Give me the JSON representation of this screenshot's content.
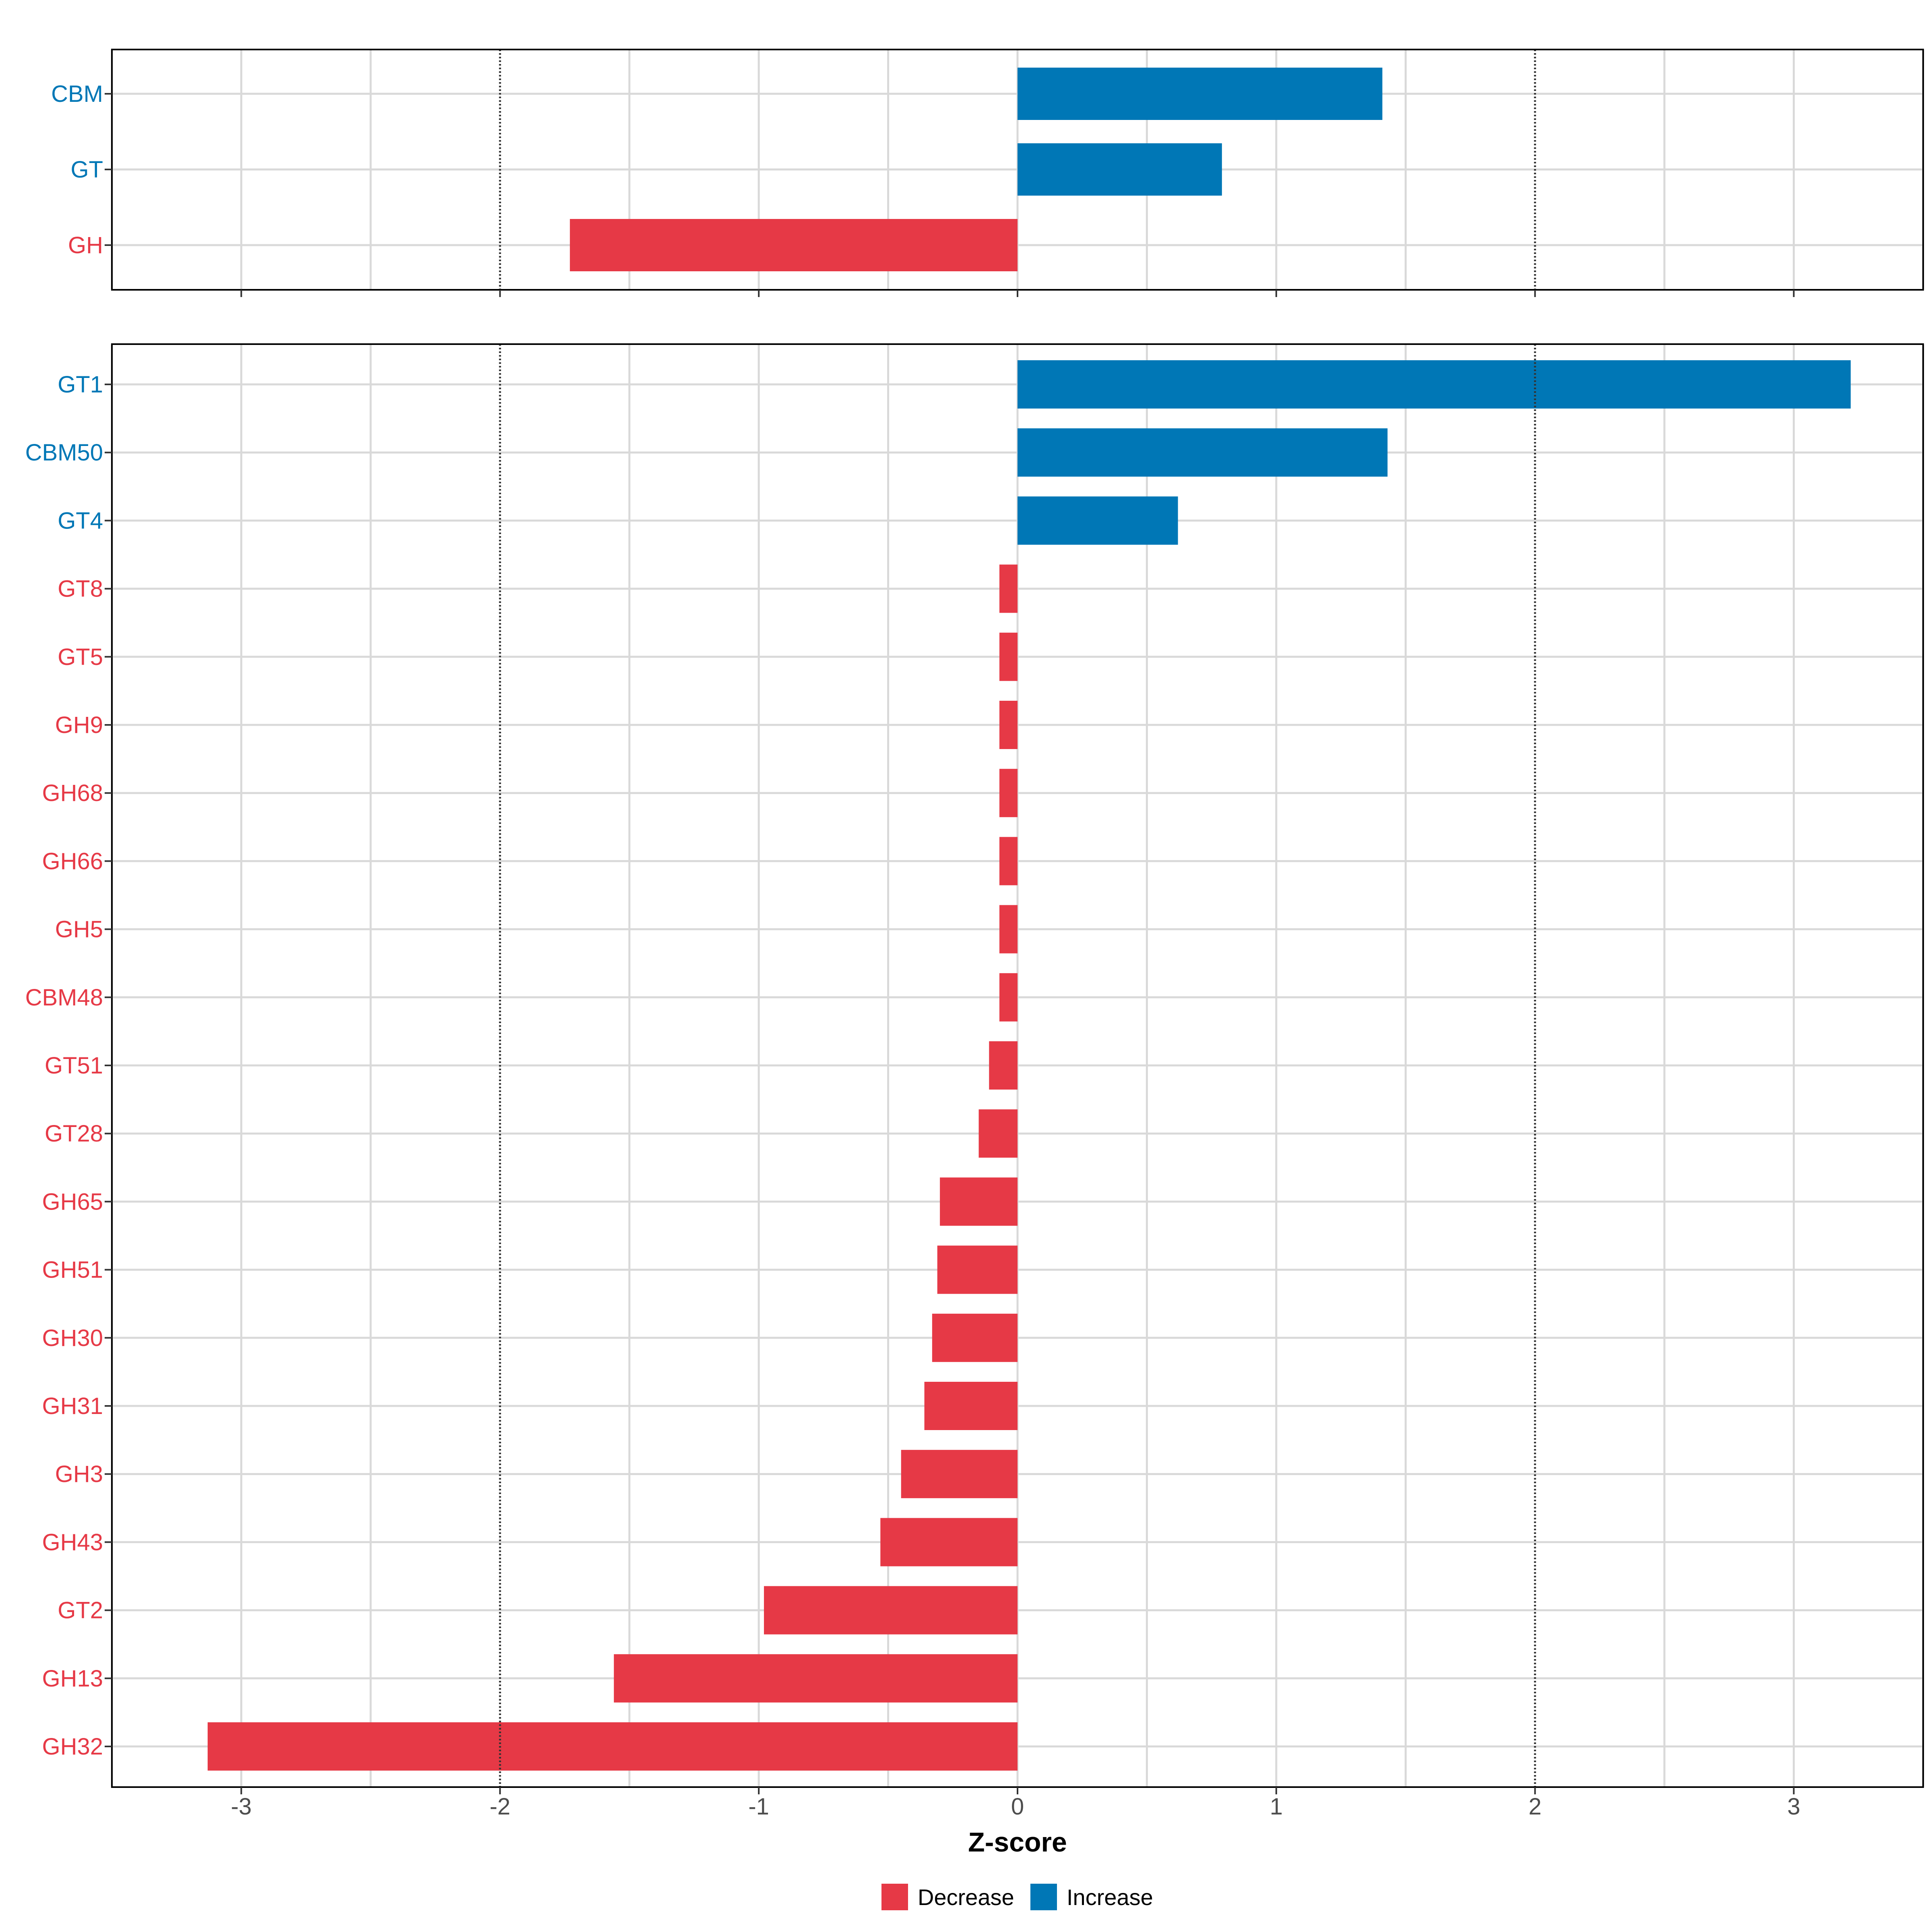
{
  "chart_data": [
    {
      "type": "bar",
      "orientation": "horizontal",
      "categories": [
        "CBM",
        "GT",
        "GH"
      ],
      "values": [
        1.41,
        0.79,
        -1.73
      ],
      "xlim": [
        -3.5,
        3.5
      ],
      "grid": true,
      "reference_lines": [
        -2,
        2
      ]
    },
    {
      "type": "bar",
      "orientation": "horizontal",
      "categories": [
        "GT1",
        "CBM50",
        "GT4",
        "GT8",
        "GT5",
        "GH9",
        "GH68",
        "GH66",
        "GH5",
        "CBM48",
        "GT51",
        "GT28",
        "GH65",
        "GH51",
        "GH30",
        "GH31",
        "GH3",
        "GH43",
        "GT2",
        "GH13",
        "GH32"
      ],
      "values": [
        3.22,
        1.43,
        0.62,
        -0.07,
        -0.07,
        -0.07,
        -0.07,
        -0.07,
        -0.07,
        -0.07,
        -0.11,
        -0.15,
        -0.3,
        -0.31,
        -0.33,
        -0.36,
        -0.45,
        -0.53,
        -0.98,
        -1.56,
        -3.13
      ],
      "xlim": [
        -3.5,
        3.5
      ],
      "xticks": [
        -3,
        -2,
        -1,
        0,
        1,
        2,
        3
      ],
      "xlabel": "Z-score",
      "grid": true,
      "reference_lines": [
        -2,
        2
      ]
    }
  ],
  "legend": {
    "placement": "bottom",
    "items": [
      {
        "label": "Decrease",
        "color": "#e63946"
      },
      {
        "label": "Increase",
        "color": "#0077b6"
      }
    ]
  }
}
